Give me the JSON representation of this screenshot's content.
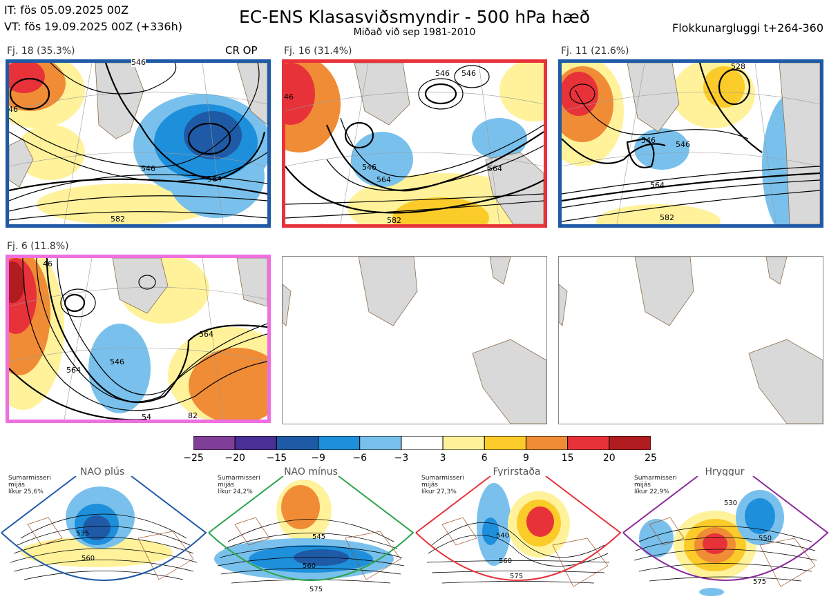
{
  "header": {
    "init_time": "IT: fös 05.09.2025 00Z",
    "valid_time": "VT: fös 19.09.2025 00Z  (+336h)",
    "title": "EC-ENS Klasasviðsmyndir - 500 hPa hæð",
    "subtitle": "Miðað við sep 1981-2010",
    "window": "Flokkunargluggi t+264-360"
  },
  "panels": [
    {
      "label": "Fj. 18 (35.3%)",
      "extra": "CR OP",
      "border_color": "#1f5aa6",
      "contours": [
        "46",
        "546",
        "546",
        "564",
        "582"
      ]
    },
    {
      "label": "Fj. 16 (31.4%)",
      "border_color": "#e8323a",
      "contours": [
        "46",
        "546",
        "546",
        "546",
        "564",
        "564",
        "582"
      ]
    },
    {
      "label": "Fj. 11 (21.6%)",
      "border_color": "#1f5aa6",
      "contours": [
        "528",
        "546",
        "546",
        "564",
        "582"
      ]
    },
    {
      "label": "Fj. 6 (11.8%)",
      "border_color": "#ee6fe0",
      "contours": [
        "46",
        "546",
        "564",
        "564",
        "54",
        "82"
      ]
    }
  ],
  "colors": {
    "anomaly_scale": [
      "#7f3f98",
      "#4a2f95",
      "#1f5aa6",
      "#1e8fdb",
      "#79c1ec",
      "#ffffff",
      "#fff29a",
      "#fbcb2a",
      "#f08c35",
      "#e8323a",
      "#b01c20"
    ],
    "land": "#d9d9d9",
    "coast": "#8a6d4b"
  },
  "chart_data": [
    {
      "type": "heatmap",
      "title": "EC-ENS Klasasviðsmyndir - 500 hPa hæð",
      "subtitle": "Miðað við sep 1981-2010",
      "colorbar": {
        "ticks": [
          "−25",
          "−20",
          "−15",
          "−9",
          "−6",
          "−3",
          "3",
          "6",
          "9",
          "15",
          "20",
          "25"
        ],
        "bins": [
          -25,
          -20,
          -15,
          -9,
          -6,
          -3,
          3,
          6,
          9,
          15,
          20,
          25
        ]
      },
      "clusters": [
        {
          "name": "Fj. 18",
          "percent": 35.3,
          "regime": "NAO plús",
          "note": "CR OP"
        },
        {
          "name": "Fj. 16",
          "percent": 31.4,
          "regime": "Fyrirstaða"
        },
        {
          "name": "Fj. 11",
          "percent": 21.6,
          "regime": "NAO plús"
        },
        {
          "name": "Fj. 6",
          "percent": 11.8,
          "regime": "Hryggur"
        }
      ]
    }
  ],
  "regimes": [
    {
      "name": "NAO plús",
      "season": "Sumarmisseri",
      "word": "mijás",
      "prob": "líkur 25,6%",
      "color": "#1f5aa6",
      "contours": [
        "535",
        "560"
      ]
    },
    {
      "name": "NAO mínus",
      "season": "Sumarmisseri",
      "word": "mijás",
      "prob": "líkur 24,2%",
      "color": "#2ca44a",
      "contours": [
        "545",
        "560",
        "575"
      ]
    },
    {
      "name": "Fyrirstaða",
      "season": "Sumarmisseri",
      "word": "mijás",
      "prob": "líkur 27,3%",
      "color": "#e8323a",
      "contours": [
        "540",
        "560",
        "575"
      ]
    },
    {
      "name": "Hryggur",
      "season": "Sumarmisseri",
      "word": "mijás",
      "prob": "líkur 22,9%",
      "color": "#ee6fe0",
      "contours": [
        "530",
        "550",
        "575"
      ]
    }
  ]
}
